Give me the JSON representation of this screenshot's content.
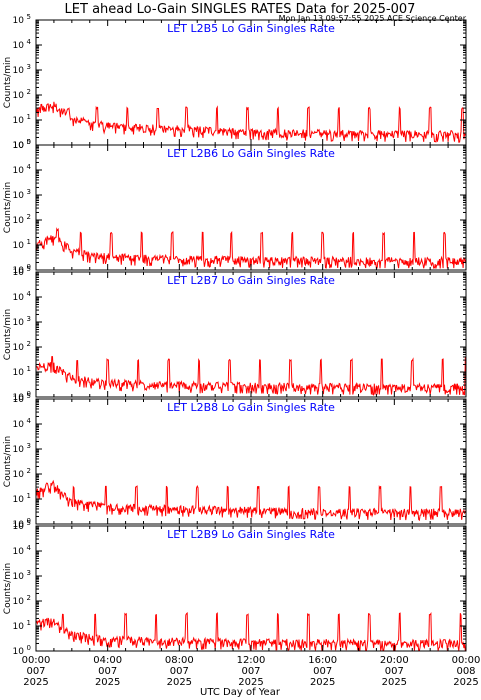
{
  "header": {
    "title": "LET ahead Lo-Gain SINGLES RATES Data for 2025-007",
    "timestamp": "Mon Jan 13 09:57:55 2025 ACE Science Center"
  },
  "colors": {
    "series": "#ff0000",
    "panel_title": "#0000ff",
    "axis": "#000000",
    "background": "#ffffff"
  },
  "chart_data": {
    "type": "line",
    "xlabel": "UTC Day of Year",
    "ylabel": "Counts/min",
    "y_scale": "log",
    "ylim": [
      1,
      100000
    ],
    "xlim_hours": [
      0,
      24
    ],
    "y_ticks": [
      {
        "base": "10",
        "exp": "0"
      },
      {
        "base": "10",
        "exp": "1"
      },
      {
        "base": "10",
        "exp": "2"
      },
      {
        "base": "10",
        "exp": "3"
      },
      {
        "base": "10",
        "exp": "4"
      },
      {
        "base": "10",
        "exp": "5"
      }
    ],
    "x_ticks": [
      {
        "hour": 0,
        "time": "00:00",
        "doy": "007",
        "year": "2025"
      },
      {
        "hour": 4,
        "time": "04:00",
        "doy": "007",
        "year": "2025"
      },
      {
        "hour": 8,
        "time": "08:00",
        "doy": "007",
        "year": "2025"
      },
      {
        "hour": 12,
        "time": "12:00",
        "doy": "007",
        "year": "2025"
      },
      {
        "hour": 16,
        "time": "16:00",
        "doy": "007",
        "year": "2025"
      },
      {
        "hour": 20,
        "time": "20:00",
        "doy": "007",
        "year": "2025"
      },
      {
        "hour": 24,
        "time": "00:00",
        "doy": "008",
        "year": "2025"
      }
    ],
    "panels": [
      {
        "title": "LET L2B5 Lo Gain Singles Rate",
        "baseline": [
          [
            0,
            25
          ],
          [
            0.5,
            30
          ],
          [
            1,
            40
          ],
          [
            1.5,
            22
          ],
          [
            2,
            12
          ],
          [
            3,
            8
          ],
          [
            4,
            6
          ],
          [
            6,
            5
          ],
          [
            8,
            4.5
          ],
          [
            10,
            3.8
          ],
          [
            12,
            3.3
          ],
          [
            16,
            3.0
          ],
          [
            20,
            2.8
          ],
          [
            24,
            2.7
          ]
        ],
        "spikes": [
          [
            0.3,
            40
          ],
          [
            1.8,
            30
          ],
          [
            3.4,
            30
          ],
          [
            5.1,
            30
          ],
          [
            6.8,
            30
          ],
          [
            8.4,
            30
          ],
          [
            10.1,
            30
          ],
          [
            11.8,
            30
          ],
          [
            13.5,
            30
          ],
          [
            15.2,
            30
          ],
          [
            16.9,
            30
          ],
          [
            18.6,
            30
          ],
          [
            20.3,
            30
          ],
          [
            22.0,
            30
          ],
          [
            23.8,
            30
          ]
        ]
      },
      {
        "title": "LET L2B6 Lo Gain Singles Rate",
        "baseline": [
          [
            0,
            12
          ],
          [
            0.5,
            14
          ],
          [
            1,
            20
          ],
          [
            1.5,
            12
          ],
          [
            2,
            6
          ],
          [
            3,
            4
          ],
          [
            4,
            3.5
          ],
          [
            6,
            3
          ],
          [
            8,
            2.8
          ],
          [
            12,
            2.6
          ],
          [
            16,
            2.5
          ],
          [
            20,
            2.4
          ],
          [
            24,
            2.4
          ]
        ],
        "spikes": [
          [
            1.2,
            40
          ],
          [
            2.5,
            30
          ],
          [
            4.2,
            30
          ],
          [
            5.9,
            30
          ],
          [
            7.6,
            30
          ],
          [
            9.3,
            30
          ],
          [
            10.9,
            30
          ],
          [
            12.6,
            30
          ],
          [
            14.3,
            30
          ],
          [
            16.0,
            30
          ],
          [
            17.7,
            30
          ],
          [
            19.4,
            30
          ],
          [
            21.1,
            30
          ],
          [
            22.8,
            30
          ]
        ]
      },
      {
        "title": "LET L2B7 Lo Gain Singles Rate",
        "baseline": [
          [
            0,
            15
          ],
          [
            0.5,
            18
          ],
          [
            1,
            20
          ],
          [
            1.5,
            10
          ],
          [
            2,
            6
          ],
          [
            3,
            4.5
          ],
          [
            4,
            3.8
          ],
          [
            6,
            3.2
          ],
          [
            8,
            3.0
          ],
          [
            12,
            2.8
          ],
          [
            16,
            2.6
          ],
          [
            20,
            2.5
          ],
          [
            24,
            2.5
          ]
        ],
        "spikes": [
          [
            0.9,
            40
          ],
          [
            2.3,
            30
          ],
          [
            4.0,
            30
          ],
          [
            5.7,
            30
          ],
          [
            7.4,
            30
          ],
          [
            9.1,
            30
          ],
          [
            10.8,
            30
          ],
          [
            12.5,
            30
          ],
          [
            14.2,
            30
          ],
          [
            15.9,
            30
          ],
          [
            17.6,
            30
          ],
          [
            19.3,
            30
          ],
          [
            21.0,
            30
          ],
          [
            22.7,
            30
          ],
          [
            24.0,
            40
          ]
        ]
      },
      {
        "title": "LET L2B8 Lo Gain Singles Rate",
        "baseline": [
          [
            0,
            20
          ],
          [
            0.5,
            25
          ],
          [
            1,
            40
          ],
          [
            1.5,
            15
          ],
          [
            2,
            8
          ],
          [
            3,
            6
          ],
          [
            4,
            5
          ],
          [
            6,
            4.5
          ],
          [
            8,
            4.0
          ],
          [
            12,
            3.6
          ],
          [
            16,
            3.2
          ],
          [
            20,
            3.0
          ],
          [
            24,
            3.0
          ]
        ],
        "spikes": [
          [
            0.6,
            40
          ],
          [
            2.1,
            30
          ],
          [
            3.9,
            30
          ],
          [
            5.6,
            30
          ],
          [
            7.3,
            30
          ],
          [
            9.0,
            30
          ],
          [
            10.7,
            30
          ],
          [
            12.4,
            30
          ],
          [
            14.1,
            30
          ],
          [
            15.8,
            30
          ],
          [
            17.5,
            30
          ],
          [
            19.2,
            30
          ],
          [
            20.9,
            30
          ],
          [
            22.6,
            30
          ]
        ]
      },
      {
        "title": "LET L2B9 Lo Gain Singles Rate",
        "baseline": [
          [
            0,
            12
          ],
          [
            0.5,
            15
          ],
          [
            1,
            18
          ],
          [
            1.5,
            8
          ],
          [
            2,
            5
          ],
          [
            3,
            3.5
          ],
          [
            4,
            3
          ],
          [
            6,
            2.7
          ],
          [
            8,
            2.5
          ],
          [
            12,
            2.3
          ],
          [
            16,
            2.2
          ],
          [
            20,
            2.1
          ],
          [
            24,
            2.1
          ]
        ],
        "spikes": [
          [
            1.5,
            30
          ],
          [
            3.3,
            30
          ],
          [
            5.0,
            30
          ],
          [
            6.7,
            30
          ],
          [
            8.4,
            30
          ],
          [
            10.1,
            30
          ],
          [
            11.8,
            30
          ],
          [
            13.5,
            30
          ],
          [
            15.2,
            30
          ],
          [
            16.9,
            30
          ],
          [
            18.6,
            30
          ],
          [
            20.3,
            30
          ],
          [
            22.0,
            30
          ],
          [
            23.7,
            30
          ]
        ]
      }
    ]
  }
}
